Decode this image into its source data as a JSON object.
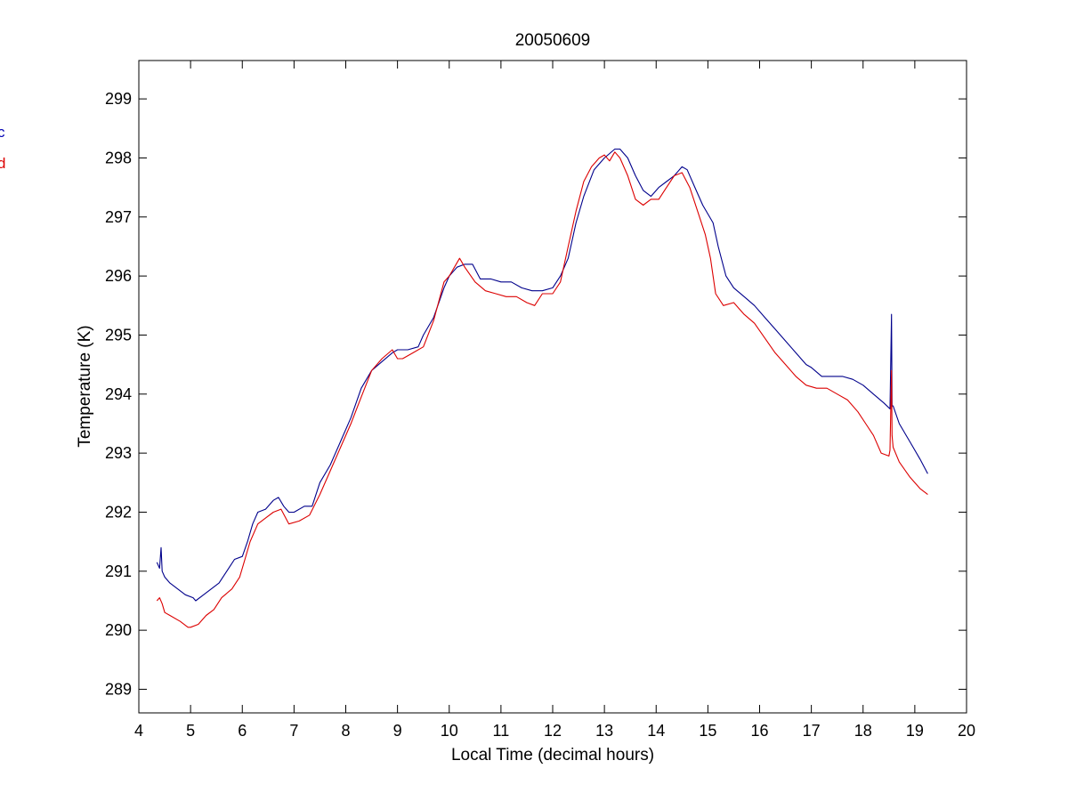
{
  "chart_data": {
    "type": "line",
    "title": "20050609",
    "xlabel": "Local Time (decimal hours)",
    "ylabel": "Temperature (K)",
    "xlim": [
      4,
      20
    ],
    "ylim": [
      288.6,
      299.65
    ],
    "xticks": [
      4,
      5,
      6,
      7,
      8,
      9,
      10,
      11,
      12,
      13,
      14,
      15,
      16,
      17,
      18,
      19,
      20
    ],
    "yticks": [
      289,
      290,
      291,
      292,
      293,
      294,
      295,
      296,
      297,
      298,
      299
    ],
    "grid": false,
    "legend": {
      "placement": "left-outside",
      "entries": [
        {
          "label": "c",
          "color": "#0000b4"
        },
        {
          "label": "d",
          "color": "#dc0000"
        }
      ]
    },
    "series": [
      {
        "color": "#00008b",
        "x": [
          4.35,
          4.4,
          4.43,
          4.45,
          4.5,
          4.6,
          4.75,
          4.9,
          5.05,
          5.1,
          5.25,
          5.4,
          5.55,
          5.7,
          5.85,
          6.0,
          6.1,
          6.2,
          6.3,
          6.45,
          6.6,
          6.7,
          6.8,
          6.9,
          7.0,
          7.2,
          7.35,
          7.5,
          7.7,
          7.9,
          8.1,
          8.3,
          8.5,
          8.7,
          8.9,
          9.0,
          9.2,
          9.4,
          9.5,
          9.7,
          9.9,
          10.0,
          10.15,
          10.3,
          10.45,
          10.6,
          10.8,
          11.0,
          11.2,
          11.4,
          11.6,
          11.8,
          12.0,
          12.15,
          12.3,
          12.45,
          12.6,
          12.8,
          13.0,
          13.2,
          13.3,
          13.45,
          13.6,
          13.75,
          13.9,
          14.05,
          14.2,
          14.35,
          14.5,
          14.6,
          14.75,
          14.9,
          15.1,
          15.2,
          15.35,
          15.5,
          15.7,
          15.9,
          16.1,
          16.3,
          16.5,
          16.7,
          16.9,
          17.0,
          17.2,
          17.4,
          17.6,
          17.8,
          18.0,
          18.2,
          18.4,
          18.52,
          18.55,
          18.56,
          18.58,
          18.7,
          18.9,
          19.1,
          19.25
        ],
        "y": [
          291.15,
          291.05,
          291.4,
          291.0,
          290.9,
          290.8,
          290.7,
          290.6,
          290.55,
          290.5,
          290.6,
          290.7,
          290.8,
          291.0,
          291.2,
          291.25,
          291.5,
          291.8,
          292.0,
          292.05,
          292.2,
          292.25,
          292.1,
          292.0,
          292.0,
          292.1,
          292.1,
          292.5,
          292.8,
          293.2,
          293.6,
          294.1,
          294.4,
          294.55,
          294.7,
          294.75,
          294.75,
          294.8,
          295.0,
          295.3,
          295.8,
          296.0,
          296.15,
          296.2,
          296.2,
          295.95,
          295.95,
          295.9,
          295.9,
          295.8,
          295.75,
          295.75,
          295.8,
          296.0,
          296.3,
          296.9,
          297.35,
          297.8,
          298.0,
          298.15,
          298.15,
          298.0,
          297.7,
          297.45,
          297.35,
          297.5,
          297.6,
          297.7,
          297.85,
          297.8,
          297.5,
          297.2,
          296.9,
          296.5,
          296.0,
          295.8,
          295.65,
          295.5,
          295.3,
          295.1,
          294.9,
          294.7,
          294.5,
          294.45,
          294.3,
          294.3,
          294.3,
          294.25,
          294.15,
          294.0,
          293.85,
          293.75,
          295.35,
          293.8,
          293.8,
          293.5,
          293.2,
          292.9,
          292.65
        ]
      },
      {
        "color": "#dc0000",
        "x": [
          4.35,
          4.4,
          4.45,
          4.5,
          4.6,
          4.8,
          4.95,
          5.0,
          5.15,
          5.3,
          5.45,
          5.6,
          5.8,
          5.95,
          6.05,
          6.15,
          6.3,
          6.45,
          6.6,
          6.75,
          6.9,
          7.1,
          7.3,
          7.5,
          7.7,
          7.9,
          8.1,
          8.3,
          8.5,
          8.7,
          8.9,
          9.0,
          9.1,
          9.3,
          9.5,
          9.7,
          9.9,
          10.0,
          10.1,
          10.2,
          10.3,
          10.5,
          10.7,
          10.9,
          11.1,
          11.3,
          11.5,
          11.65,
          11.8,
          12.0,
          12.15,
          12.3,
          12.45,
          12.6,
          12.75,
          12.9,
          13.0,
          13.1,
          13.2,
          13.3,
          13.45,
          13.6,
          13.75,
          13.9,
          14.05,
          14.2,
          14.35,
          14.5,
          14.65,
          14.8,
          14.95,
          15.05,
          15.15,
          15.3,
          15.5,
          15.7,
          15.9,
          16.1,
          16.3,
          16.5,
          16.7,
          16.9,
          17.1,
          17.3,
          17.5,
          17.7,
          17.9,
          18.05,
          18.2,
          18.35,
          18.5,
          18.52,
          18.55,
          18.56,
          18.58,
          18.7,
          18.9,
          19.1,
          19.25
        ],
        "y": [
          290.5,
          290.55,
          290.45,
          290.3,
          290.25,
          290.15,
          290.05,
          290.05,
          290.1,
          290.25,
          290.35,
          290.55,
          290.7,
          290.9,
          291.2,
          291.5,
          291.8,
          291.9,
          292.0,
          292.05,
          291.8,
          291.85,
          291.95,
          292.3,
          292.7,
          293.1,
          293.5,
          293.95,
          294.4,
          294.6,
          294.75,
          294.6,
          294.6,
          294.7,
          294.8,
          295.25,
          295.9,
          296.0,
          296.15,
          296.3,
          296.15,
          295.9,
          295.75,
          295.7,
          295.65,
          295.65,
          295.55,
          295.5,
          295.7,
          295.7,
          295.9,
          296.5,
          297.1,
          297.6,
          297.85,
          298.0,
          298.05,
          297.95,
          298.1,
          298.0,
          297.7,
          297.3,
          297.2,
          297.3,
          297.3,
          297.5,
          297.7,
          297.75,
          297.5,
          297.1,
          296.7,
          296.3,
          295.7,
          295.5,
          295.55,
          295.35,
          295.2,
          294.95,
          294.7,
          294.5,
          294.3,
          294.15,
          294.1,
          294.1,
          294.0,
          293.9,
          293.7,
          293.5,
          293.3,
          293.0,
          292.95,
          293.05,
          294.4,
          293.3,
          293.1,
          292.85,
          292.6,
          292.4,
          292.3
        ]
      }
    ]
  }
}
